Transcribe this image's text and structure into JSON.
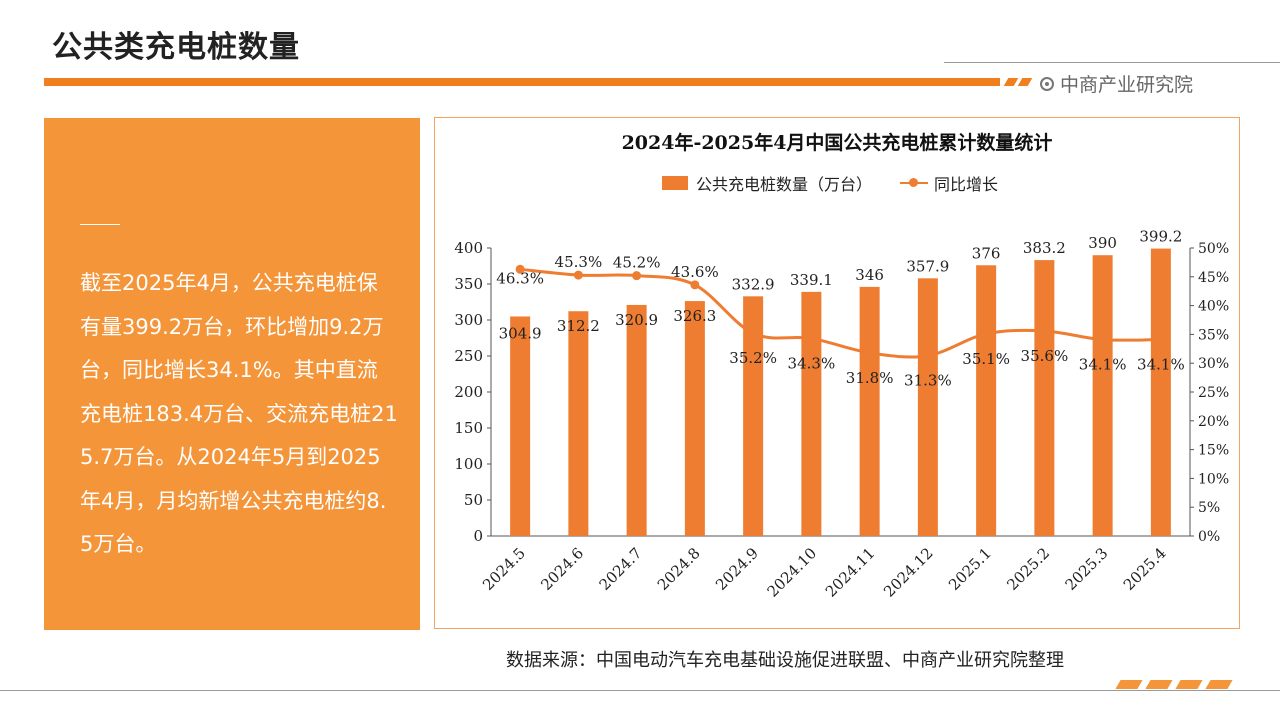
{
  "header": {
    "title": "公共类充电桩数量",
    "brand": "中商产业研究院",
    "brand_icon": "target-icon"
  },
  "summary": {
    "text": "截至2025年4月，公共充电桩保有量399.2万台，环比增加9.2万台，同比增长34.1%。其中直流充电桩183.4万台、交流充电桩215.7万台。从2024年5月到2025年4月，月均新增公共充电桩约8.5万台。"
  },
  "source": "数据来源：中国电动汽车充电基础设施促进联盟、中商产业研究院整理",
  "colors": {
    "accent": "#f07f1e",
    "bar": "#ee7d31",
    "panel": "#f4953a"
  },
  "chart_data": {
    "type": "bar",
    "title": "2024年-2025年4月中国公共充电桩累计数量统计",
    "categories": [
      "2024.5",
      "2024.6",
      "2024.7",
      "2024.8",
      "2024.9",
      "2024.10",
      "2024.11",
      "2024.12",
      "2025.1",
      "2025.2",
      "2025.3",
      "2025.4"
    ],
    "series": [
      {
        "name": "公共充电桩数量（万台）",
        "type": "bar",
        "axis": "left",
        "values": [
          304.9,
          312.2,
          320.9,
          326.3,
          332.9,
          339.1,
          346,
          357.9,
          376,
          383.2,
          390,
          399.2
        ],
        "labels": [
          "304.9",
          "312.2",
          "320.9",
          "326.3",
          "332.9",
          "339.1",
          "346",
          "357.9",
          "376",
          "383.2",
          "390",
          "399.2"
        ]
      },
      {
        "name": "同比增长",
        "type": "line",
        "axis": "right",
        "values": [
          46.3,
          45.3,
          45.2,
          43.6,
          35.2,
          34.3,
          31.8,
          31.3,
          35.1,
          35.6,
          34.1,
          34.1
        ],
        "labels": [
          "46.3%",
          "45.3%",
          "45.2%",
          "43.6%",
          "35.2%",
          "34.3%",
          "31.8%",
          "31.3%",
          "35.1%",
          "35.6%",
          "34.1%",
          "34.1%"
        ]
      }
    ],
    "y_left": {
      "min": 0,
      "max": 400,
      "ticks": [
        "0",
        "50",
        "100",
        "150",
        "200",
        "250",
        "300",
        "350",
        "400"
      ]
    },
    "y_right": {
      "min": 0,
      "max": 50,
      "ticks": [
        "0%",
        "5%",
        "10%",
        "15%",
        "20%",
        "25%",
        "30%",
        "35%",
        "40%",
        "45%",
        "50%"
      ]
    },
    "legend_position": "top",
    "grid": false
  }
}
